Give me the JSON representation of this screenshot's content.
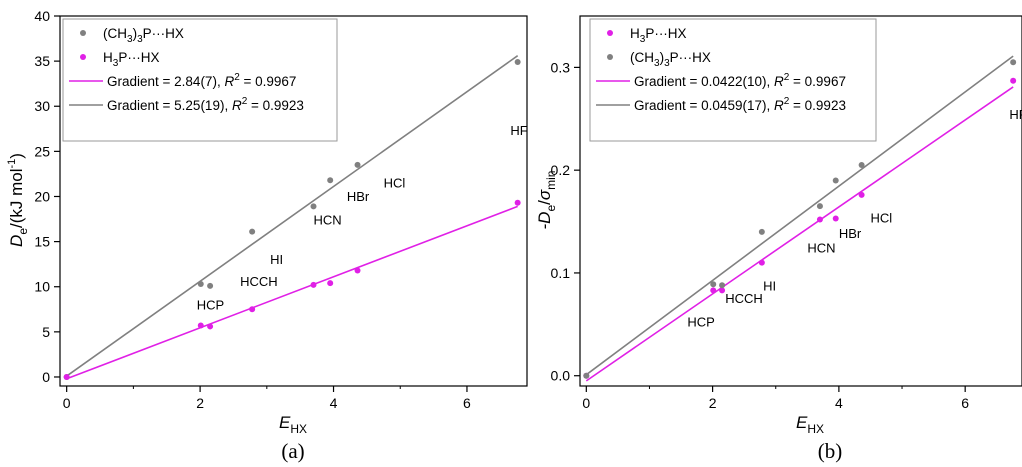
{
  "colors": {
    "h3p": "#e020e6",
    "ch3p": "#808080"
  },
  "chart_data": [
    {
      "type": "scatter",
      "panel_label": "(a)",
      "xlabel_main": "E",
      "xlabel_sub": "HX",
      "ylabel_main": "D",
      "ylabel_sub": "e",
      "ylabel_unit": "/(kJ mol",
      "ylabel_sup": "-1",
      "ylabel_close": ")",
      "xlim": [
        -0.1,
        6.9
      ],
      "ylim": [
        -1,
        40
      ],
      "xticks": [
        0,
        2,
        4,
        6
      ],
      "yticks": [
        0,
        5,
        10,
        15,
        20,
        25,
        30,
        35,
        40
      ],
      "series": [
        {
          "key": "ch3p",
          "name_parts": [
            "(CH",
            "3",
            ")",
            "3",
            "P···HX"
          ],
          "x": [
            0,
            2.01,
            2.15,
            2.78,
            3.7,
            3.95,
            4.36,
            6.76
          ],
          "y": [
            0,
            10.3,
            10.1,
            16.1,
            18.9,
            21.8,
            23.5,
            34.9
          ],
          "fit": {
            "gradient": "5.25(19)",
            "r2": "0.9923",
            "x": [
              0,
              6.76
            ],
            "y": [
              0.1,
              35.6
            ]
          }
        },
        {
          "key": "h3p",
          "name_parts": [
            "H",
            "3",
            "P···HX"
          ],
          "x": [
            0,
            2.01,
            2.15,
            2.78,
            3.7,
            3.95,
            4.36,
            6.76
          ],
          "y": [
            0,
            5.7,
            5.6,
            7.5,
            10.2,
            10.4,
            11.8,
            19.3
          ],
          "fit": {
            "gradient": "2.84(7)",
            "r2": "0.9967",
            "x": [
              0,
              6.76
            ],
            "y": [
              -0.2,
              18.9
            ]
          }
        }
      ],
      "legend_order": [
        "ch3p",
        "h3p"
      ],
      "fit_order": [
        "h3p",
        "ch3p"
      ],
      "annotations": [
        {
          "text": "HCP",
          "x": 1.95,
          "y": 7.5
        },
        {
          "text": "HCCH",
          "x": 2.6,
          "y": 10.1
        },
        {
          "text": "HI",
          "x": 3.05,
          "y": 12.5
        },
        {
          "text": "HCN",
          "x": 3.7,
          "y": 16.9
        },
        {
          "text": "HBr",
          "x": 4.2,
          "y": 19.5
        },
        {
          "text": "HCl",
          "x": 4.75,
          "y": 21.0
        },
        {
          "text": "HF",
          "x": 6.65,
          "y": 26.8
        }
      ]
    },
    {
      "type": "scatter",
      "panel_label": "(b)",
      "xlabel_main": "E",
      "xlabel_sub": "HX",
      "ylabel_main": "-D",
      "ylabel_sub": "e",
      "ylabel_slash": "/",
      "ylabel_sigma": "σ",
      "ylabel_sigma_sub": "min",
      "xlim": [
        -0.1,
        6.9
      ],
      "ylim": [
        -0.01,
        0.35
      ],
      "xticks": [
        0,
        2,
        4,
        6
      ],
      "yticks": [
        0,
        0.1,
        0.2,
        0.3
      ],
      "series": [
        {
          "key": "h3p",
          "name_parts": [
            "H",
            "3",
            "P···HX"
          ],
          "x": [
            0,
            2.01,
            2.15,
            2.78,
            3.7,
            3.95,
            4.36,
            6.76
          ],
          "y": [
            0,
            0.083,
            0.083,
            0.11,
            0.152,
            0.153,
            0.176,
            0.287
          ],
          "fit": {
            "gradient": "0.0422(10)",
            "r2": "0.9967",
            "x": [
              0,
              6.76
            ],
            "y": [
              -0.005,
              0.281
            ]
          }
        },
        {
          "key": "ch3p",
          "name_parts": [
            "(CH",
            "3",
            ")",
            "3",
            "P···HX"
          ],
          "x": [
            0,
            2.01,
            2.15,
            2.78,
            3.7,
            3.95,
            4.36,
            6.76
          ],
          "y": [
            0,
            0.089,
            0.088,
            0.14,
            0.165,
            0.19,
            0.205,
            0.305
          ],
          "fit": {
            "gradient": "0.0459(17)",
            "r2": "0.9923",
            "x": [
              0,
              6.76
            ],
            "y": [
              0.001,
              0.311
            ]
          }
        }
      ],
      "legend_order": [
        "h3p",
        "ch3p"
      ],
      "fit_order": [
        "h3p",
        "ch3p"
      ],
      "annotations": [
        {
          "text": "HCP",
          "x": 1.6,
          "y": 0.048
        },
        {
          "text": "HCCH",
          "x": 2.2,
          "y": 0.071
        },
        {
          "text": "HI",
          "x": 2.8,
          "y": 0.083
        },
        {
          "text": "HCN",
          "x": 3.5,
          "y": 0.12
        },
        {
          "text": "HBr",
          "x": 4.0,
          "y": 0.134
        },
        {
          "text": "HCl",
          "x": 4.5,
          "y": 0.149
        },
        {
          "text": "HF",
          "x": 6.7,
          "y": 0.25
        }
      ]
    }
  ],
  "fit_text": {
    "prefix": "Gradient = ",
    "r2_sep": ", ",
    "r2_letter": "R",
    "r2_sup": "2",
    "r2_eq": " = "
  }
}
